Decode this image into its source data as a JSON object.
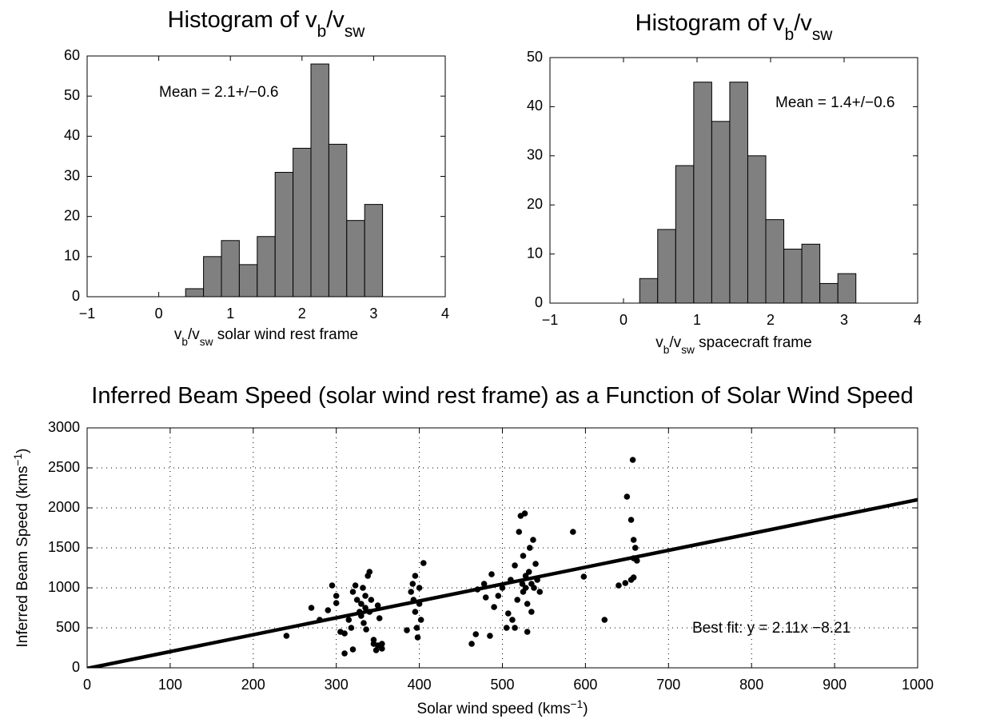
{
  "chart_data": [
    {
      "type": "histogram",
      "title": [
        {
          "text": "Histogram of v"
        },
        {
          "text": "b",
          "sub": true
        },
        {
          "text": "/v"
        },
        {
          "text": "sw",
          "sub": true
        }
      ],
      "xlabel": [
        {
          "text": "v"
        },
        {
          "text": "b",
          "sub": true
        },
        {
          "text": "/v"
        },
        {
          "text": "sw",
          "sub": true
        },
        {
          "text": " solar wind rest frame"
        }
      ],
      "annotation": "Mean = 2.1+/−0.6",
      "bins": [
        0.375,
        0.625,
        0.875,
        1.125,
        1.375,
        1.625,
        1.875,
        2.125,
        2.375,
        2.625,
        2.875,
        3.125
      ],
      "counts": [
        2,
        10,
        14,
        8,
        15,
        31,
        37,
        58,
        38,
        19,
        23
      ],
      "color": "#808080",
      "xlim": [
        -1,
        4
      ],
      "xticks": [
        {
          "value": -1,
          "label": "−1"
        },
        0,
        1,
        2,
        3,
        4
      ],
      "ylim": [
        0,
        60
      ],
      "yticks": [
        0,
        10,
        20,
        30,
        40,
        50,
        60
      ],
      "grid": false
    },
    {
      "type": "histogram",
      "title": [
        {
          "text": "Histogram of v"
        },
        {
          "text": "b",
          "sub": true
        },
        {
          "text": "/v"
        },
        {
          "text": "sw",
          "sub": true
        }
      ],
      "xlabel": [
        {
          "text": "v"
        },
        {
          "text": "b",
          "sub": true
        },
        {
          "text": "/v"
        },
        {
          "text": "sw",
          "sub": true
        },
        {
          "text": " spacecraft frame"
        }
      ],
      "annotation": "Mean = 1.4+/−0.6",
      "bins": [
        0.22,
        0.465,
        0.71,
        0.955,
        1.2,
        1.445,
        1.69,
        1.935,
        2.18,
        2.425,
        2.67,
        2.915,
        3.16
      ],
      "counts": [
        5,
        15,
        28,
        45,
        37,
        45,
        30,
        17,
        11,
        12,
        4,
        6
      ],
      "color": "#808080",
      "xlim": [
        -1,
        4
      ],
      "xticks": [
        {
          "value": -1,
          "label": "−1"
        },
        0,
        1,
        2,
        3,
        4
      ],
      "ylim": [
        0,
        50
      ],
      "yticks": [
        0,
        10,
        20,
        30,
        40,
        50
      ],
      "grid": false
    },
    {
      "type": "scatter",
      "title": [
        {
          "text": "Inferred Beam Speed (solar wind rest frame) as a Function of Solar Wind Speed"
        }
      ],
      "xlabel": [
        {
          "text": "Solar wind speed (kms"
        },
        {
          "text": "−1",
          "sup": true
        },
        {
          "text": ")"
        }
      ],
      "ylabel": [
        {
          "text": "Inferred Beam Speed (kms"
        },
        {
          "text": "−1",
          "sup": true
        },
        {
          "text": ")"
        }
      ],
      "annotation": "Best fit: y = 2.11x −8.21",
      "color": "#000000",
      "points": {
        "x": [
          240,
          270,
          280,
          290,
          295,
          300,
          305,
          310,
          310,
          315,
          320,
          320,
          325,
          328,
          330,
          330,
          332,
          333,
          335,
          335,
          338,
          340,
          340,
          342,
          345,
          345,
          348,
          350,
          350,
          352,
          355,
          355,
          300,
          318,
          323,
          336,
          385,
          390,
          392,
          393,
          395,
          395,
          397,
          400,
          400,
          402,
          405,
          398,
          463,
          468,
          470,
          478,
          480,
          485,
          487,
          490,
          495,
          500,
          505,
          507,
          510,
          512,
          515,
          518,
          520,
          522,
          524,
          525,
          525,
          527,
          528,
          530,
          530,
          532,
          533,
          535,
          535,
          537,
          538,
          540,
          542,
          545,
          515,
          528,
          585,
          598,
          623,
          640,
          650,
          648,
          655,
          657,
          658,
          658,
          660,
          658,
          662,
          655
        ],
        "y": [
          400,
          750,
          600,
          720,
          1030,
          900,
          450,
          430,
          180,
          600,
          230,
          950,
          850,
          700,
          800,
          650,
          1000,
          560,
          750,
          900,
          1150,
          1200,
          700,
          850,
          350,
          300,
          220,
          280,
          780,
          620,
          300,
          240,
          810,
          500,
          1030,
          480,
          470,
          950,
          1050,
          850,
          1150,
          700,
          500,
          800,
          1000,
          600,
          1310,
          380,
          300,
          420,
          980,
          1050,
          880,
          400,
          1170,
          760,
          900,
          1000,
          500,
          680,
          1100,
          600,
          1280,
          850,
          1700,
          1900,
          1050,
          1400,
          950,
          1930,
          1150,
          800,
          450,
          1200,
          1500,
          1050,
          700,
          1600,
          1000,
          1300,
          1100,
          950,
          500,
          1000,
          1700,
          1140,
          600,
          1030,
          2140,
          1060,
          1850,
          2600,
          1600,
          1370,
          1500,
          1130,
          1340,
          1100
        ]
      },
      "fit_line": {
        "x": [
          0,
          1000
        ],
        "y": [
          -8.21,
          2101.79
        ]
      },
      "xlim": [
        0,
        1000
      ],
      "xticks": [
        0,
        100,
        200,
        300,
        400,
        500,
        600,
        700,
        800,
        900,
        1000
      ],
      "ylim": [
        0,
        3000
      ],
      "yticks": [
        0,
        500,
        1000,
        1500,
        2000,
        2500,
        3000
      ],
      "grid": true
    }
  ]
}
